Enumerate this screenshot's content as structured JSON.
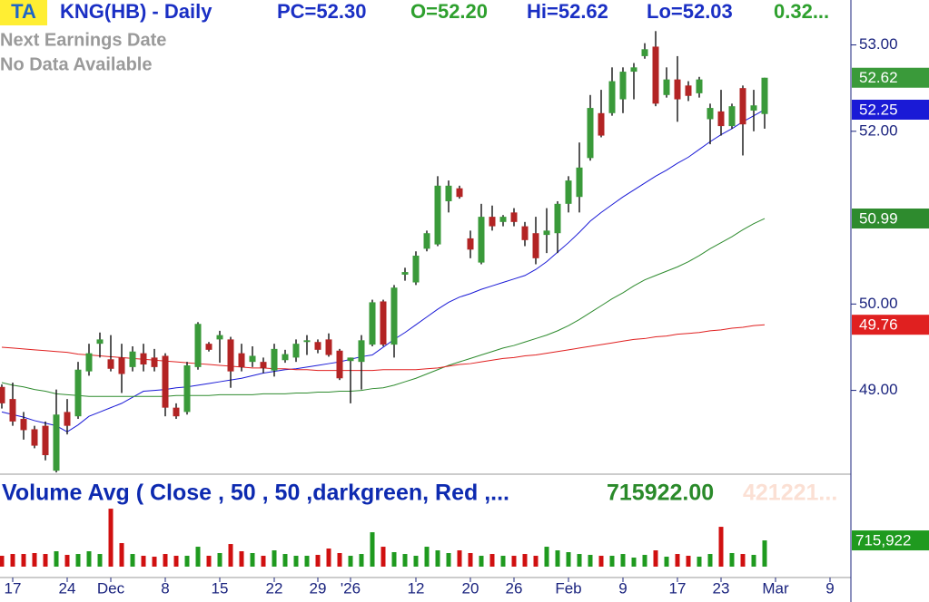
{
  "chart_data": [
    {
      "type": "candlestick",
      "badge": "TA",
      "title": "KNG(HB) - Daily",
      "stats": [
        "PC=52.30",
        "O=52.20",
        "Hi=52.62",
        "Lo=52.03",
        "0.32..."
      ],
      "notes": [
        "Next Earnings Date",
        "No Data Available"
      ],
      "categories": [
        null,
        "17",
        null,
        null,
        null,
        null,
        "24",
        null,
        null,
        null,
        "Dec",
        null,
        null,
        null,
        null,
        "8",
        null,
        null,
        null,
        null,
        "15",
        null,
        null,
        null,
        null,
        "22",
        null,
        null,
        null,
        "29",
        null,
        null,
        "'26",
        null,
        null,
        null,
        null,
        null,
        "12",
        null,
        null,
        null,
        null,
        "20",
        null,
        null,
        null,
        "26",
        null,
        null,
        null,
        null,
        "Feb",
        null,
        null,
        null,
        null,
        "9",
        null,
        null,
        null,
        null,
        "17",
        null,
        null,
        null,
        "23",
        null,
        null,
        null,
        null,
        "Mar",
        null,
        null,
        null,
        null,
        "9",
        null
      ],
      "open": [
        49.04,
        48.9,
        48.67,
        48.55,
        48.59,
        48.07,
        48.75,
        48.7,
        49.22,
        49.54,
        49.36,
        49.38,
        49.27,
        49.43,
        49.38,
        49.4,
        48.8,
        48.75,
        49.27,
        49.54,
        49.59,
        49.59,
        49.43,
        49.33,
        49.33,
        49.23,
        49.35,
        49.38,
        49.56,
        49.56,
        49.59,
        49.46,
        49.34,
        49.33,
        49.53,
        50.03,
        49.53,
        50.34,
        50.25,
        50.64,
        50.69,
        51.19,
        51.34,
        50.76,
        50.48,
        51.01,
        50.95,
        51.06,
        50.9,
        50.82,
        50.8,
        50.82,
        51.16,
        51.24,
        51.69,
        52.21,
        52.21,
        52.37,
        52.69,
        52.87,
        52.98,
        52.42,
        52.6,
        52.53,
        52.44,
        52.14,
        52.23,
        52.06,
        52.5,
        52.24,
        52.2,
        null,
        null,
        null,
        null,
        null,
        null,
        null
      ],
      "high": [
        49.07,
        49.09,
        48.75,
        48.59,
        48.64,
        49.01,
        48.9,
        49.33,
        49.54,
        49.67,
        49.64,
        49.54,
        49.51,
        49.54,
        49.48,
        49.43,
        48.85,
        49.33,
        49.79,
        49.56,
        49.69,
        49.62,
        49.54,
        49.51,
        49.38,
        49.54,
        49.47,
        49.59,
        49.64,
        49.59,
        49.66,
        49.48,
        49.38,
        49.64,
        50.05,
        50.05,
        50.22,
        50.42,
        50.61,
        50.85,
        51.48,
        51.43,
        51.37,
        50.85,
        51.16,
        51.14,
        51.03,
        51.11,
        50.95,
        51.01,
        51.11,
        51.19,
        51.48,
        51.87,
        52.42,
        52.48,
        52.74,
        52.74,
        52.79,
        53.02,
        53.16,
        52.74,
        52.87,
        52.58,
        52.63,
        52.32,
        52.48,
        52.32,
        52.53,
        52.48,
        52.62,
        null,
        null,
        null,
        null,
        null,
        null,
        null
      ],
      "low": [
        48.79,
        48.59,
        48.43,
        48.33,
        48.19,
        48.05,
        48.49,
        48.67,
        49.17,
        49.38,
        49.22,
        48.97,
        49.22,
        49.22,
        49.22,
        48.7,
        48.67,
        48.72,
        49.24,
        49.45,
        49.32,
        49.03,
        49.22,
        49.27,
        49.2,
        49.16,
        49.32,
        49.33,
        49.41,
        49.43,
        49.39,
        49.12,
        48.85,
        49.01,
        49.51,
        49.51,
        49.38,
        50.27,
        50.22,
        50.61,
        50.67,
        51.06,
        51.22,
        50.53,
        50.46,
        50.85,
        50.9,
        50.9,
        50.67,
        50.46,
        50.59,
        50.59,
        51.06,
        51.06,
        51.66,
        51.93,
        52.18,
        52.21,
        52.37,
        52.84,
        52.29,
        52.39,
        52.11,
        52.35,
        52.39,
        51.85,
        51.95,
        52.03,
        51.72,
        52.0,
        52.03,
        null,
        null,
        null,
        null,
        null,
        null,
        null
      ],
      "close": [
        48.85,
        48.64,
        48.54,
        48.36,
        48.25,
        48.72,
        48.59,
        49.24,
        49.43,
        49.59,
        49.25,
        49.19,
        49.45,
        49.3,
        49.27,
        48.8,
        48.7,
        49.29,
        49.77,
        49.47,
        49.64,
        49.22,
        49.27,
        49.4,
        49.26,
        49.48,
        49.42,
        49.54,
        49.58,
        49.47,
        49.41,
        49.14,
        49.38,
        49.58,
        50.02,
        49.53,
        50.19,
        50.37,
        50.56,
        50.82,
        51.37,
        51.37,
        51.24,
        50.63,
        51.01,
        50.9,
        51.01,
        50.95,
        50.74,
        50.53,
        50.85,
        51.16,
        51.43,
        51.58,
        52.27,
        51.95,
        52.58,
        52.69,
        52.74,
        52.95,
        52.32,
        52.6,
        52.37,
        52.41,
        52.6,
        52.27,
        52.06,
        52.29,
        52.08,
        52.3,
        52.62,
        null,
        null,
        null,
        null,
        null,
        null,
        null
      ],
      "series": [
        {
          "color": "#1a1ad6",
          "values": [
            48.75,
            48.72,
            48.69,
            48.65,
            48.62,
            48.59,
            48.52,
            48.6,
            48.7,
            48.75,
            48.8,
            48.85,
            48.92,
            48.99,
            49.0,
            49.01,
            49.03,
            49.04,
            49.06,
            49.08,
            49.1,
            49.12,
            49.14,
            49.17,
            49.2,
            49.22,
            49.24,
            49.25,
            49.27,
            49.29,
            49.31,
            49.33,
            49.36,
            49.39,
            49.41,
            49.5,
            49.59,
            49.67,
            49.76,
            49.85,
            49.94,
            50.02,
            50.08,
            50.12,
            50.17,
            50.21,
            50.25,
            50.29,
            50.33,
            50.4,
            50.49,
            50.6,
            50.71,
            50.83,
            50.96,
            51.06,
            51.15,
            51.24,
            51.32,
            51.4,
            51.48,
            51.55,
            51.63,
            51.7,
            51.79,
            51.88,
            51.96,
            52.03,
            52.11,
            52.18,
            52.25,
            null,
            null,
            null,
            null,
            null,
            null,
            null
          ]
        },
        {
          "color": "#2e8b2e",
          "values": [
            49.09,
            49.06,
            49.04,
            49.01,
            48.99,
            48.96,
            48.95,
            48.94,
            48.93,
            48.93,
            48.93,
            48.93,
            48.93,
            48.93,
            48.93,
            48.93,
            48.94,
            48.94,
            48.94,
            48.94,
            48.95,
            48.95,
            48.95,
            48.95,
            48.96,
            48.96,
            48.96,
            48.97,
            48.97,
            48.98,
            48.98,
            48.99,
            48.99,
            49.0,
            49.02,
            49.03,
            49.06,
            49.1,
            49.14,
            49.19,
            49.24,
            49.29,
            49.33,
            49.37,
            49.41,
            49.45,
            49.49,
            49.52,
            49.56,
            49.6,
            49.64,
            49.69,
            49.75,
            49.82,
            49.9,
            49.98,
            50.06,
            50.13,
            50.21,
            50.28,
            50.33,
            50.38,
            50.43,
            50.49,
            50.56,
            50.64,
            50.71,
            50.78,
            50.86,
            50.93,
            50.99,
            null,
            null,
            null,
            null,
            null,
            null,
            null
          ]
        },
        {
          "color": "#e02020",
          "values": [
            49.5,
            49.49,
            49.48,
            49.47,
            49.46,
            49.45,
            49.44,
            49.42,
            49.41,
            49.4,
            49.39,
            49.38,
            49.37,
            49.36,
            49.35,
            49.34,
            49.33,
            49.32,
            49.31,
            49.3,
            49.29,
            49.28,
            49.27,
            49.26,
            49.26,
            49.25,
            49.25,
            49.24,
            49.24,
            49.23,
            49.23,
            49.23,
            49.23,
            49.23,
            49.23,
            49.24,
            49.24,
            49.24,
            49.24,
            49.25,
            49.26,
            49.28,
            49.3,
            49.31,
            49.33,
            49.35,
            49.37,
            49.38,
            49.4,
            49.41,
            49.43,
            49.45,
            49.47,
            49.49,
            49.51,
            49.53,
            49.55,
            49.57,
            49.59,
            49.6,
            49.62,
            49.63,
            49.65,
            49.66,
            49.67,
            49.69,
            49.7,
            49.72,
            49.73,
            49.75,
            49.76,
            null,
            null,
            null,
            null,
            null,
            null,
            null
          ]
        }
      ],
      "up_color": "#3a9a3a",
      "down_color": "#b32424",
      "ylim": [
        48.03,
        53.52
      ],
      "yticks": [
        {
          "value": 49,
          "label": "49.00"
        },
        {
          "value": 50,
          "label": "50.00"
        },
        {
          "value": 52,
          "label": "52.00"
        },
        {
          "value": 53,
          "label": "53.00"
        }
      ]
    },
    {
      "type": "bar",
      "title": "Volume Avg ( Close , 50 , 50 ,darkgreen, Red ,...",
      "value_text": "715922.00",
      "avg_text": "421221...",
      "values": [
        296400,
        345800,
        345800,
        370500,
        345800,
        419900,
        321100,
        345800,
        419900,
        345800,
        1580800,
        642200,
        345800,
        296400,
        271700,
        345800,
        296400,
        296400,
        543400,
        296400,
        370500,
        617500,
        419900,
        370500,
        296400,
        444600,
        345800,
        296400,
        296400,
        321100,
        494000,
        370500,
        296400,
        345800,
        938600,
        543400,
        395200,
        345800,
        296400,
        543400,
        444600,
        370500,
        444600,
        370500,
        296400,
        345800,
        296400,
        296400,
        345800,
        296400,
        543400,
        444600,
        395200,
        345800,
        321100,
        296400,
        296400,
        345800,
        247000,
        321100,
        444600,
        271700,
        345800,
        296400,
        271700,
        345800,
        1086800,
        370500,
        345800,
        321100,
        715922,
        null,
        null,
        null,
        null,
        null,
        null,
        null
      ],
      "value_labels": [
        null,
        null,
        null,
        null,
        null,
        null,
        null,
        null,
        null,
        null,
        null,
        null,
        null,
        null,
        null,
        null,
        null,
        null,
        null,
        null,
        null,
        null,
        null,
        null,
        null,
        null,
        null,
        null,
        null,
        null,
        null,
        null,
        null,
        null,
        null,
        null,
        null,
        null,
        null,
        null,
        null,
        null,
        null,
        null,
        null,
        null,
        null,
        null,
        null,
        null,
        null,
        null,
        null,
        null,
        null,
        null,
        null,
        null,
        null,
        null,
        null,
        null,
        null,
        null,
        null,
        null,
        null,
        null,
        null,
        null,
        "715,922",
        null,
        null,
        null,
        null,
        null,
        null,
        null
      ],
      "up_color": "#1f9a1f",
      "down_color": "#d01010",
      "ylim": [
        0,
        2350000
      ]
    }
  ]
}
